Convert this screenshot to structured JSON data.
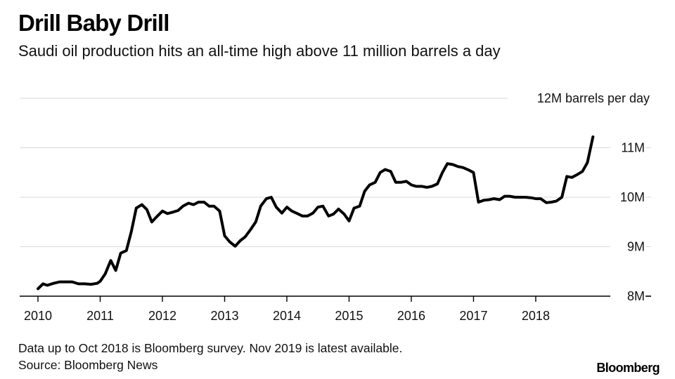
{
  "header": {
    "title": "Drill Baby Drill",
    "subtitle": "Saudi oil production hits an all-time high above 11 million barrels a day"
  },
  "footer": {
    "note": "Data up to Oct 2018 is Bloomberg survey. Nov 2019 is latest available.",
    "source": "Source: Bloomberg News",
    "brand": "Bloomberg"
  },
  "colors": {
    "line": "#000000",
    "grid": "#d9d9d9",
    "axis": "#000000"
  },
  "chart_data": {
    "type": "line",
    "title": "Drill Baby Drill",
    "subtitle": "Saudi oil production hits an all-time high above 11 million barrels a day",
    "xlabel": "",
    "ylabel": "barrels per day",
    "unit_label": "12M barrels per day",
    "xlim": [
      2010,
      2018.95
    ],
    "ylim": [
      8,
      12
    ],
    "y_ticks": [
      {
        "value": 12,
        "label": "12M barrels per day"
      },
      {
        "value": 11,
        "label": "11M"
      },
      {
        "value": 10,
        "label": "10M"
      },
      {
        "value": 9,
        "label": "9M"
      },
      {
        "value": 8,
        "label": "8M"
      }
    ],
    "x_ticks": [
      {
        "value": 2010,
        "label": "2010"
      },
      {
        "value": 2011,
        "label": "2011"
      },
      {
        "value": 2012,
        "label": "2012"
      },
      {
        "value": 2013,
        "label": "2013"
      },
      {
        "value": 2014,
        "label": "2014"
      },
      {
        "value": 2015,
        "label": "2015"
      },
      {
        "value": 2016,
        "label": "2016"
      },
      {
        "value": 2017,
        "label": "2017"
      },
      {
        "value": 2018,
        "label": "2018"
      }
    ],
    "grid": true,
    "series": [
      {
        "name": "Saudi oil production",
        "x": [
          2010.0,
          2010.08,
          2010.15,
          2010.25,
          2010.35,
          2010.45,
          2010.55,
          2010.65,
          2010.75,
          2010.85,
          2010.95,
          2011.0,
          2011.08,
          2011.17,
          2011.25,
          2011.33,
          2011.42,
          2011.5,
          2011.58,
          2011.67,
          2011.75,
          2011.83,
          2011.92,
          2012.0,
          2012.08,
          2012.17,
          2012.25,
          2012.33,
          2012.42,
          2012.5,
          2012.58,
          2012.67,
          2012.75,
          2012.83,
          2012.92,
          2013.0,
          2013.08,
          2013.17,
          2013.25,
          2013.33,
          2013.42,
          2013.5,
          2013.58,
          2013.67,
          2013.75,
          2013.83,
          2013.92,
          2014.0,
          2014.08,
          2014.17,
          2014.25,
          2014.33,
          2014.42,
          2014.5,
          2014.58,
          2014.67,
          2014.75,
          2014.83,
          2014.92,
          2015.0,
          2015.08,
          2015.17,
          2015.25,
          2015.33,
          2015.42,
          2015.5,
          2015.58,
          2015.67,
          2015.75,
          2015.83,
          2015.92,
          2016.0,
          2016.08,
          2016.17,
          2016.25,
          2016.33,
          2016.42,
          2016.5,
          2016.58,
          2016.67,
          2016.75,
          2016.83,
          2016.92,
          2017.0,
          2017.08,
          2017.17,
          2017.25,
          2017.33,
          2017.42,
          2017.5,
          2017.58,
          2017.67,
          2017.75,
          2017.83,
          2017.92,
          2018.0,
          2018.08,
          2018.17,
          2018.25,
          2018.33,
          2018.42,
          2018.5,
          2018.58,
          2018.67,
          2018.75,
          2018.83,
          2018.92
        ],
        "values": [
          8.15,
          8.25,
          8.22,
          8.26,
          8.29,
          8.29,
          8.29,
          8.25,
          8.25,
          8.24,
          8.26,
          8.3,
          8.45,
          8.72,
          8.52,
          8.87,
          8.92,
          9.3,
          9.78,
          9.85,
          9.75,
          9.5,
          9.62,
          9.72,
          9.67,
          9.7,
          9.73,
          9.82,
          9.88,
          9.85,
          9.9,
          9.9,
          9.82,
          9.82,
          9.72,
          9.22,
          9.1,
          9.01,
          9.12,
          9.2,
          9.35,
          9.5,
          9.82,
          9.97,
          10.0,
          9.8,
          9.68,
          9.8,
          9.72,
          9.67,
          9.62,
          9.62,
          9.68,
          9.8,
          9.82,
          9.62,
          9.66,
          9.76,
          9.66,
          9.52,
          9.78,
          9.82,
          10.12,
          10.25,
          10.3,
          10.5,
          10.56,
          10.52,
          10.3,
          10.3,
          10.32,
          10.25,
          10.22,
          10.22,
          10.2,
          10.22,
          10.27,
          10.5,
          10.68,
          10.66,
          10.62,
          10.6,
          10.55,
          10.5,
          9.9,
          9.94,
          9.95,
          9.97,
          9.95,
          10.02,
          10.02,
          10.0,
          10.0,
          10.0,
          9.99,
          9.97,
          9.97,
          9.89,
          9.9,
          9.92,
          10.0,
          10.42,
          10.4,
          10.46,
          10.52,
          10.7,
          11.22
        ]
      }
    ]
  }
}
